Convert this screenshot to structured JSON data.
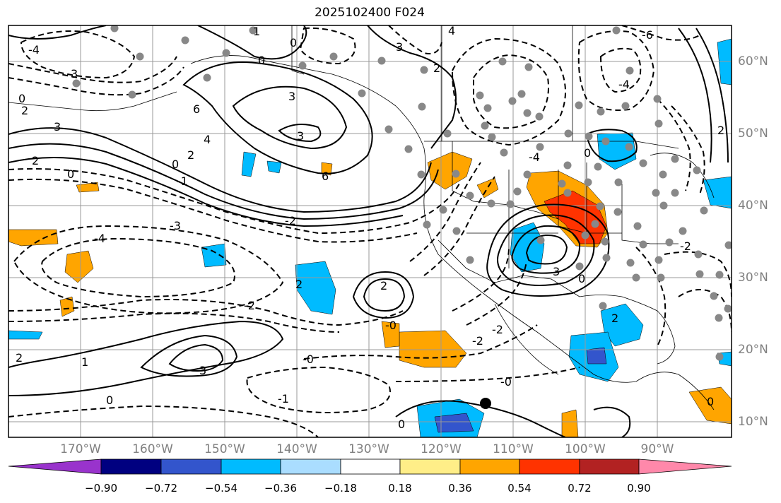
{
  "title": "2025102400 F024",
  "lat_labels": [
    "60°N",
    "50°N",
    "40°N",
    "30°N",
    "20°N",
    "10°N"
  ],
  "lon_labels": [
    "170°W",
    "160°W",
    "150°W",
    "140°W",
    "130°W",
    "120°W",
    "110°W",
    "100°W",
    "90°W"
  ],
  "colorbar": {
    "ticks": [
      "−0.90",
      "−0.72",
      "−0.54",
      "−0.36",
      "−0.18",
      "0.18",
      "0.36",
      "0.54",
      "0.72",
      "0.90"
    ],
    "colors": [
      "#9933cc",
      "#000080",
      "#3355cc",
      "#00bbff",
      "#aaddff",
      "#ffffff",
      "#ffee88",
      "#ffa500",
      "#ff3300",
      "#b22222",
      "#ff88aa"
    ]
  },
  "colors": {
    "land_border": "#000000",
    "grid": "#999999",
    "label": "#808080",
    "station": "#888888",
    "marker": "#000000"
  },
  "contour_labels": [
    "4",
    "3",
    "6",
    "2",
    "1",
    "0",
    "-1",
    "-2",
    "-3",
    "-4",
    "-6",
    "-0"
  ]
}
